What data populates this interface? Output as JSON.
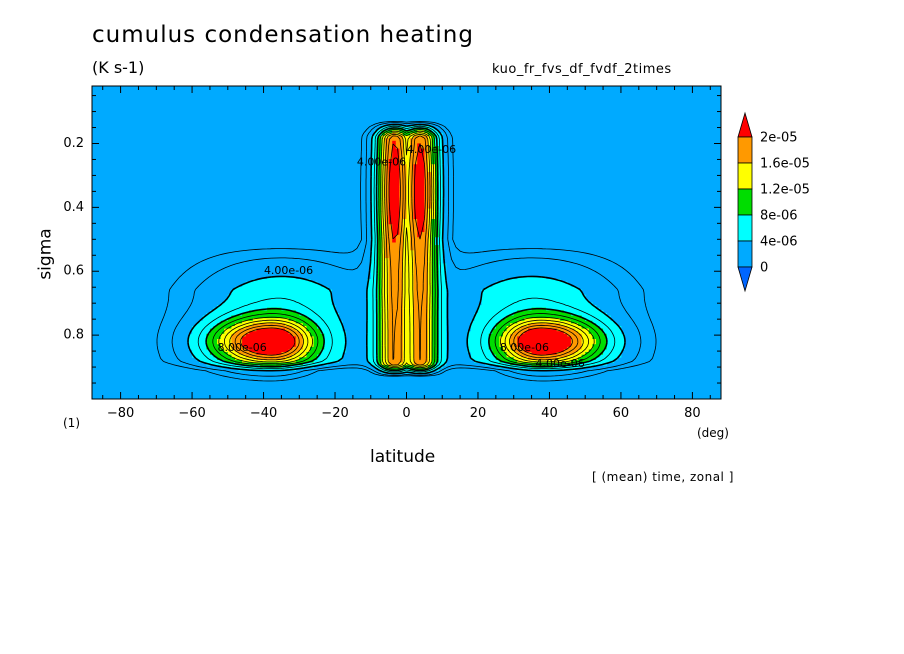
{
  "header": {
    "title": "cumulus condensation heating",
    "units": "(K s-1)",
    "run_name": "kuo_fr_fvs_df_fvdf_2times",
    "plot_index": "(1)",
    "footnote": "[ (mean) time, zonal ]"
  },
  "colors": {
    "background": "#00aaff",
    "levels": [
      "#0066ff",
      "#00aaff",
      "#00ffff",
      "#00dd00",
      "#ffff00",
      "#ff9900",
      "#ff0000"
    ]
  },
  "chart_data": {
    "type": "heatmap",
    "title": "cumulus condensation heating",
    "xlabel": "latitude",
    "x_unit": "(deg)",
    "ylabel": "sigma",
    "xlim": [
      -88,
      88
    ],
    "ylim": [
      1.0,
      0.02
    ],
    "y_inverted": true,
    "x_ticks": [
      -80,
      -60,
      -40,
      -20,
      0,
      20,
      40,
      60,
      80
    ],
    "x_tick_labels": [
      "−80",
      "−60",
      "−40",
      "−20",
      "0",
      "20",
      "40",
      "60",
      "80"
    ],
    "y_ticks": [
      0.2,
      0.4,
      0.6,
      0.8
    ],
    "y_tick_labels": [
      "0.2",
      "0.4",
      "0.6",
      "0.8"
    ],
    "colorbar": {
      "levels": [
        0,
        4e-06,
        8e-06,
        1.2e-05,
        1.6e-05,
        2e-05
      ],
      "labels": [
        "0",
        "4e-06",
        "8e-06",
        "1.2e-05",
        "1.6e-05",
        "2e-05"
      ],
      "extend": "both",
      "placement": "right"
    },
    "contour_labels": [
      {
        "text": "4.00e-06",
        "lat": -33,
        "sigma": 0.6
      },
      {
        "text": "8.00e-06",
        "lat": -46,
        "sigma": 0.84
      },
      {
        "text": "8.00e-06",
        "lat": 33,
        "sigma": 0.84
      },
      {
        "text": "4.00e-06",
        "lat": 43,
        "sigma": 0.89
      },
      {
        "text": "4.00e-06",
        "lat": -7,
        "sigma": 0.26
      },
      {
        "text": "4.00e-06",
        "lat": 7,
        "sigma": 0.22
      }
    ],
    "features": [
      {
        "name": "equatorial maximum",
        "lat_range": [
          -10,
          10
        ],
        "sigma_range": [
          0.13,
          0.92
        ],
        "peak_value": 2.2e-05,
        "peak_lat": [
          -3,
          5
        ],
        "peak_sigma": 0.35
      },
      {
        "name": "southern mid-latitude maximum",
        "lat_range": [
          -72,
          -20
        ],
        "sigma_range": [
          0.5,
          0.92
        ],
        "peak_value": 2e-05,
        "peak_lat": -38,
        "peak_sigma": 0.82
      },
      {
        "name": "northern mid-latitude maximum",
        "lat_range": [
          20,
          72
        ],
        "sigma_range": [
          0.5,
          0.92
        ],
        "peak_value": 2e-05,
        "peak_lat": 38,
        "peak_sigma": 0.82
      }
    ]
  }
}
